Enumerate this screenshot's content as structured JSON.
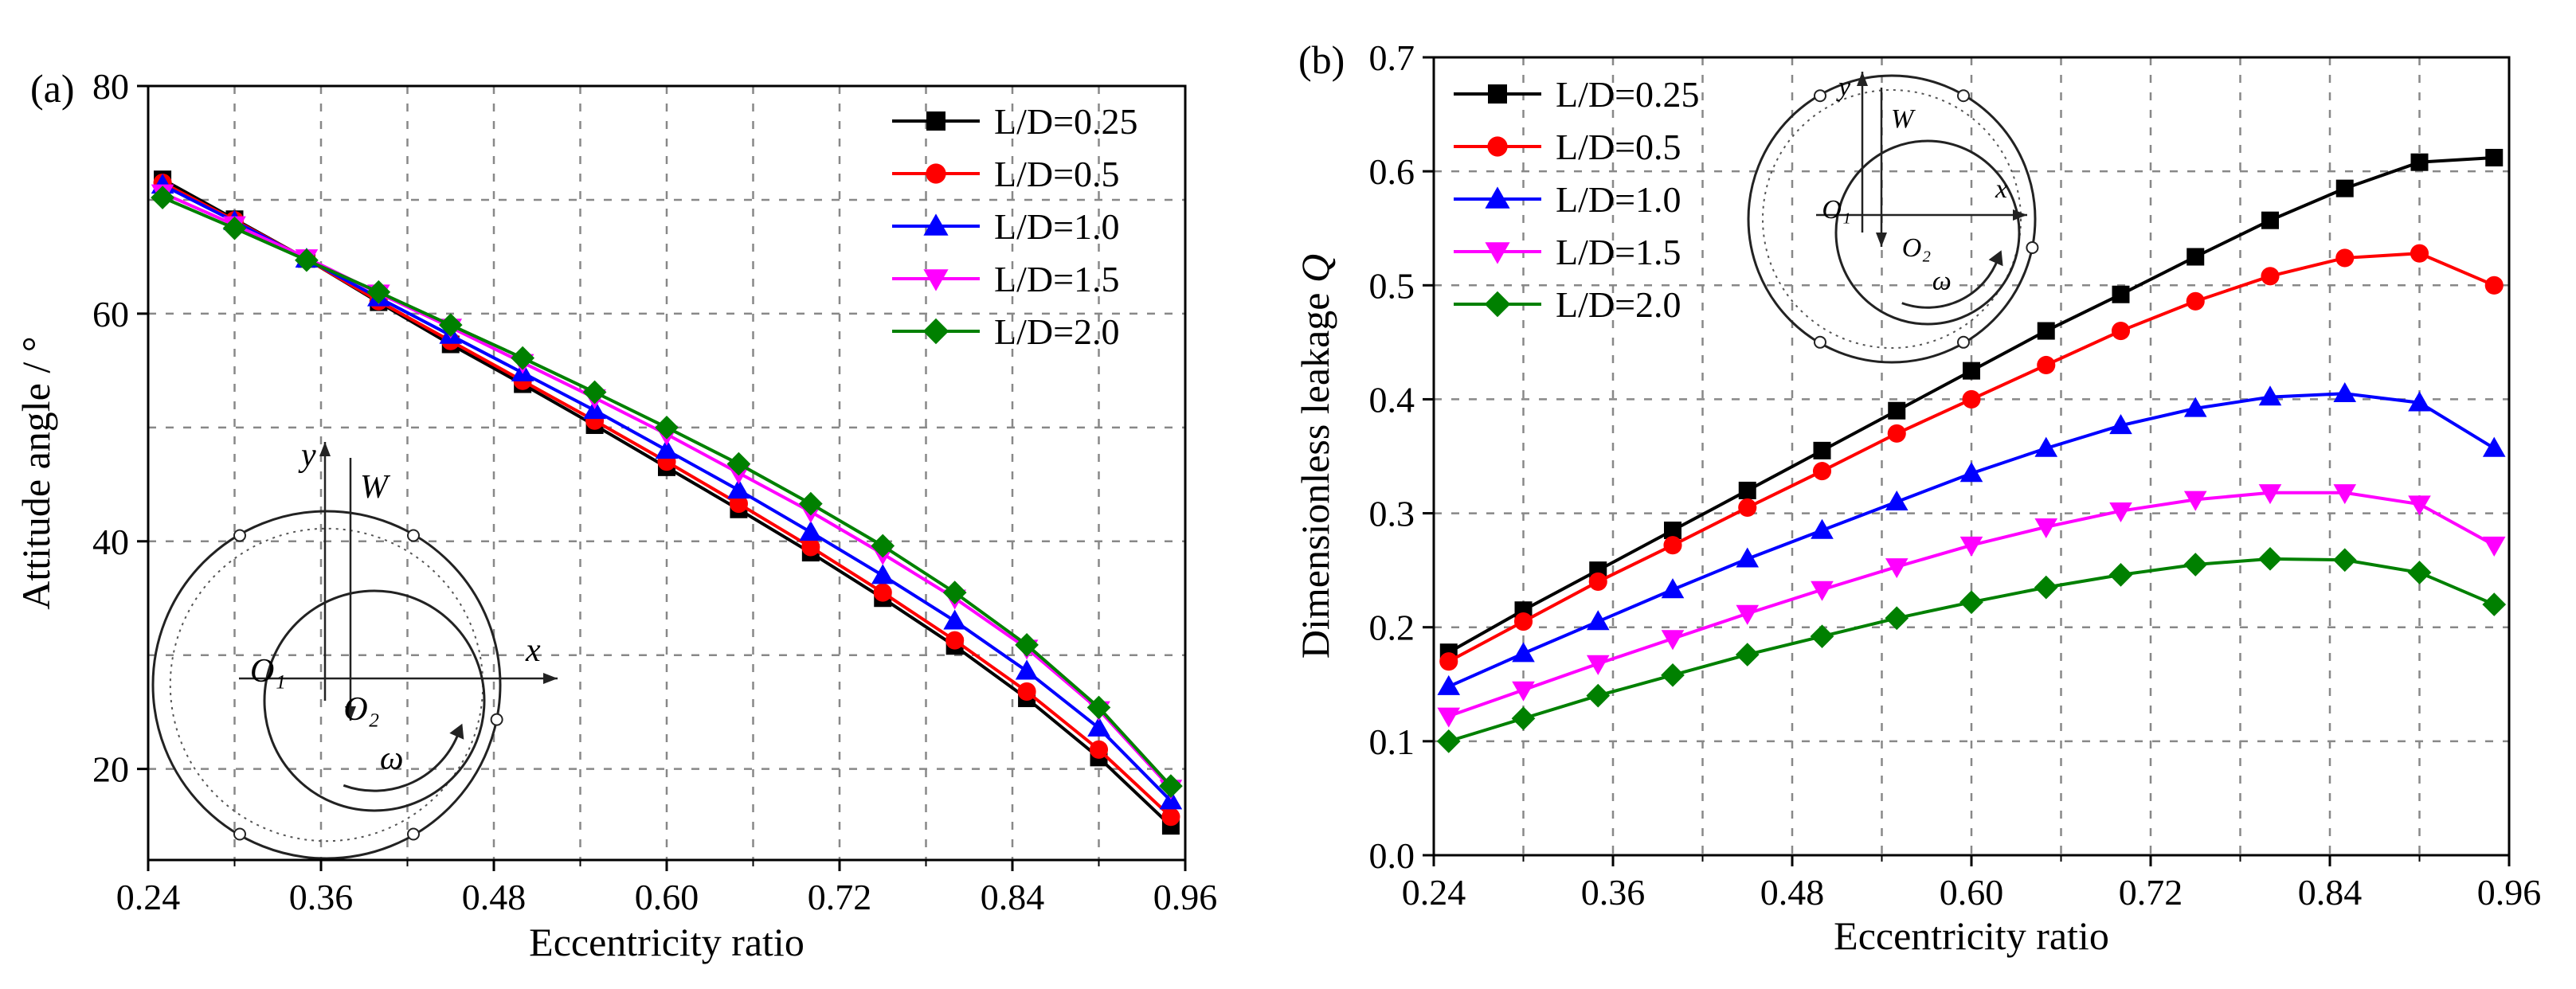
{
  "chart_data": [
    {
      "type": "line",
      "panel_label": "(a)",
      "title": "",
      "xlabel": "Eccentricity ratio",
      "ylabel": "Attitude angle / °",
      "xlim": [
        0.24,
        0.96
      ],
      "ylim": [
        12,
        80
      ],
      "xticks": [
        "0.24",
        "0.36",
        "0.48",
        "0.60",
        "0.72",
        "0.84",
        "0.96"
      ],
      "yticks": [
        "20",
        "40",
        "60",
        "80"
      ],
      "grid": true,
      "legend_position": "top-right",
      "x": [
        0.25,
        0.3,
        0.35,
        0.4,
        0.45,
        0.5,
        0.55,
        0.6,
        0.65,
        0.7,
        0.75,
        0.8,
        0.85,
        0.9,
        0.95
      ],
      "series": [
        {
          "name": "L/D=0.25",
          "color": "#000000",
          "marker": "square",
          "values": [
            71.8,
            68.3,
            64.8,
            61.0,
            57.3,
            53.8,
            50.2,
            46.5,
            42.8,
            39.0,
            35.0,
            30.8,
            26.2,
            21.0,
            15.0
          ]
        },
        {
          "name": "L/D=0.5",
          "color": "#ff0000",
          "marker": "circle",
          "values": [
            71.5,
            68.2,
            64.8,
            61.1,
            57.6,
            54.1,
            50.6,
            47.0,
            43.3,
            39.5,
            35.5,
            31.3,
            26.8,
            21.7,
            15.8
          ]
        },
        {
          "name": "L/D=1.0",
          "color": "#0000ff",
          "marker": "triangle-up",
          "values": [
            71.3,
            68.1,
            64.8,
            61.4,
            58.1,
            54.8,
            51.5,
            48.0,
            44.5,
            40.8,
            37.0,
            33.0,
            28.6,
            23.6,
            17.2
          ]
        },
        {
          "name": "L/D=1.5",
          "color": "#ff00ff",
          "marker": "triangle-down",
          "values": [
            70.6,
            67.8,
            64.9,
            61.8,
            58.8,
            55.7,
            52.6,
            49.4,
            46.0,
            42.6,
            38.9,
            35.0,
            30.6,
            25.2,
            18.3
          ]
        },
        {
          "name": "L/D=2.0",
          "color": "#008000",
          "marker": "diamond",
          "values": [
            70.2,
            67.5,
            64.7,
            61.9,
            59.0,
            56.1,
            53.1,
            50.0,
            46.8,
            43.3,
            39.6,
            35.5,
            30.9,
            25.4,
            18.5
          ]
        }
      ],
      "inset_labels": {
        "y": "y",
        "w": "W",
        "x": "x",
        "o1": "O₁",
        "o2": "O₂",
        "omega": "ω"
      }
    },
    {
      "type": "line",
      "panel_label": "(b)",
      "title": "",
      "xlabel": "Eccentricity ratio",
      "ylabel": "Dimensionless leakage ",
      "ylabel_symbol": "Q",
      "xlim": [
        0.24,
        0.96
      ],
      "ylim": [
        0.0,
        0.7
      ],
      "xticks": [
        "0.24",
        "0.36",
        "0.48",
        "0.60",
        "0.72",
        "0.84",
        "0.96"
      ],
      "yticks": [
        "0.0",
        "0.1",
        "0.2",
        "0.3",
        "0.4",
        "0.5",
        "0.6",
        "0.7"
      ],
      "grid": true,
      "legend_position": "top-left",
      "x": [
        0.25,
        0.3,
        0.35,
        0.4,
        0.45,
        0.5,
        0.55,
        0.6,
        0.65,
        0.7,
        0.75,
        0.8,
        0.85,
        0.9,
        0.95
      ],
      "series": [
        {
          "name": "L/D=0.25",
          "color": "#000000",
          "marker": "square",
          "values": [
            0.178,
            0.215,
            0.25,
            0.285,
            0.32,
            0.355,
            0.39,
            0.425,
            0.46,
            0.492,
            0.525,
            0.557,
            0.585,
            0.608,
            0.612
          ]
        },
        {
          "name": "L/D=0.5",
          "color": "#ff0000",
          "marker": "circle",
          "values": [
            0.17,
            0.205,
            0.24,
            0.272,
            0.305,
            0.337,
            0.37,
            0.4,
            0.43,
            0.46,
            0.486,
            0.508,
            0.524,
            0.528,
            0.5
          ]
        },
        {
          "name": "L/D=1.0",
          "color": "#0000ff",
          "marker": "triangle-up",
          "values": [
            0.148,
            0.177,
            0.205,
            0.233,
            0.26,
            0.285,
            0.31,
            0.335,
            0.357,
            0.377,
            0.392,
            0.402,
            0.405,
            0.397,
            0.357
          ]
        },
        {
          "name": "L/D=1.5",
          "color": "#ff00ff",
          "marker": "triangle-down",
          "values": [
            0.122,
            0.145,
            0.168,
            0.19,
            0.212,
            0.233,
            0.253,
            0.272,
            0.288,
            0.302,
            0.312,
            0.318,
            0.318,
            0.308,
            0.272
          ]
        },
        {
          "name": "L/D=2.0",
          "color": "#008000",
          "marker": "diamond",
          "values": [
            0.1,
            0.12,
            0.14,
            0.158,
            0.176,
            0.192,
            0.208,
            0.222,
            0.235,
            0.246,
            0.255,
            0.26,
            0.259,
            0.248,
            0.22
          ]
        }
      ],
      "inset_labels": {
        "y": "y",
        "w": "W",
        "x": "x",
        "o1": "O₁",
        "o2": "O₂",
        "omega": "ω"
      }
    }
  ]
}
